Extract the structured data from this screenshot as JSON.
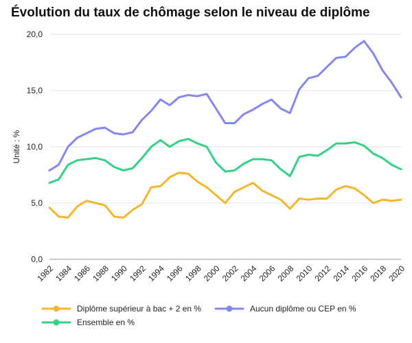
{
  "chart_data": {
    "type": "line",
    "title": "Évolution du taux de chômage selon le niveau de diplôme",
    "xlabel": "",
    "ylabel": "Unité : %",
    "ylim": [
      0,
      20
    ],
    "yticks": [
      "0,0",
      "5,0",
      "10,0",
      "15,0",
      "20,0"
    ],
    "ytick_values": [
      0,
      5,
      10,
      15,
      20
    ],
    "x": [
      1982,
      1983,
      1984,
      1985,
      1986,
      1987,
      1988,
      1989,
      1990,
      1991,
      1992,
      1993,
      1994,
      1995,
      1996,
      1997,
      1998,
      1999,
      2000,
      2001,
      2002,
      2003,
      2004,
      2005,
      2006,
      2007,
      2008,
      2009,
      2010,
      2011,
      2012,
      2013,
      2014,
      2015,
      2016,
      2017,
      2018,
      2019,
      2020
    ],
    "xticks": [
      "1982",
      "1984",
      "1986",
      "1988",
      "1990",
      "1992",
      "1994",
      "1996",
      "1998",
      "2000",
      "2002",
      "2004",
      "2006",
      "2008",
      "2010",
      "2012",
      "2014",
      "2016",
      "2018",
      "2020"
    ],
    "grid": "horizontal",
    "legend_position": "bottom",
    "series": [
      {
        "name": "Diplôme supérieur à bac + 2 en %",
        "color": "#f5b52e",
        "values": [
          4.6,
          3.8,
          3.7,
          4.7,
          5.2,
          5.0,
          4.8,
          3.8,
          3.7,
          4.4,
          4.9,
          6.4,
          6.5,
          7.3,
          7.7,
          7.6,
          6.9,
          6.4,
          5.7,
          5.0,
          6.0,
          6.4,
          6.8,
          6.1,
          5.7,
          5.3,
          4.5,
          5.4,
          5.3,
          5.4,
          5.4,
          6.2,
          6.5,
          6.3,
          5.7,
          5.0,
          5.3,
          5.2,
          5.3
        ]
      },
      {
        "name": "Aucun diplôme ou CEP en %",
        "color": "#8387f0",
        "values": [
          7.9,
          8.4,
          10.0,
          10.8,
          11.2,
          11.6,
          11.7,
          11.2,
          11.1,
          11.3,
          12.4,
          13.2,
          14.2,
          13.7,
          14.4,
          14.6,
          14.5,
          14.7,
          13.4,
          12.1,
          12.1,
          12.9,
          13.3,
          13.8,
          14.2,
          13.4,
          13.0,
          15.1,
          16.1,
          16.3,
          17.1,
          17.9,
          18.0,
          18.8,
          19.4,
          18.3,
          16.8,
          15.7,
          14.4
        ]
      },
      {
        "name": "Ensemble en %",
        "color": "#33d184",
        "values": [
          6.8,
          7.1,
          8.4,
          8.8,
          8.9,
          9.0,
          8.8,
          8.2,
          7.9,
          8.1,
          9.0,
          10.0,
          10.6,
          10.0,
          10.5,
          10.7,
          10.3,
          10.0,
          8.6,
          7.8,
          7.9,
          8.5,
          8.9,
          8.9,
          8.8,
          8.0,
          7.4,
          9.1,
          9.3,
          9.2,
          9.7,
          10.3,
          10.3,
          10.4,
          10.1,
          9.4,
          9.0,
          8.4,
          8.0
        ]
      }
    ]
  }
}
